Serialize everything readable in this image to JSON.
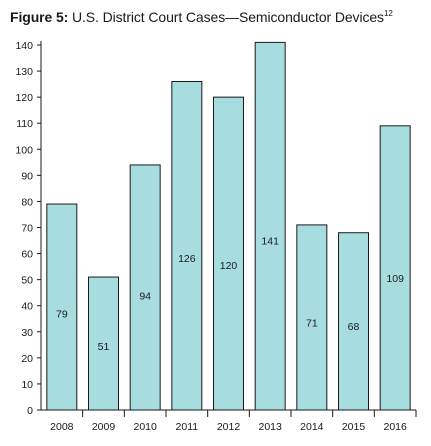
{
  "title": {
    "prefix": "Figure 5:",
    "text": " U.S. District Court Cases—Semiconductor Devices",
    "footnote": "12"
  },
  "colors": {
    "bar_fill": "#a8dde0",
    "bar_stroke": "#1a1a1a",
    "axis": "#1a1a1a",
    "text": "#1a1a1a"
  },
  "chart_data": {
    "type": "bar",
    "title": "Figure 5: U.S. District Court Cases—Semiconductor Devices",
    "categories": [
      "2008",
      "2009",
      "2010",
      "2011",
      "2012",
      "2013",
      "2014",
      "2015",
      "2016"
    ],
    "values": [
      79,
      51,
      94,
      126,
      120,
      141,
      71,
      68,
      109
    ],
    "ylim": [
      0,
      140
    ],
    "yticks": [
      0,
      10,
      20,
      30,
      40,
      50,
      60,
      70,
      80,
      90,
      100,
      110,
      120,
      130,
      140
    ],
    "xlabel": "",
    "ylabel": "",
    "grid": false,
    "legend": "none",
    "data_labels": true
  }
}
